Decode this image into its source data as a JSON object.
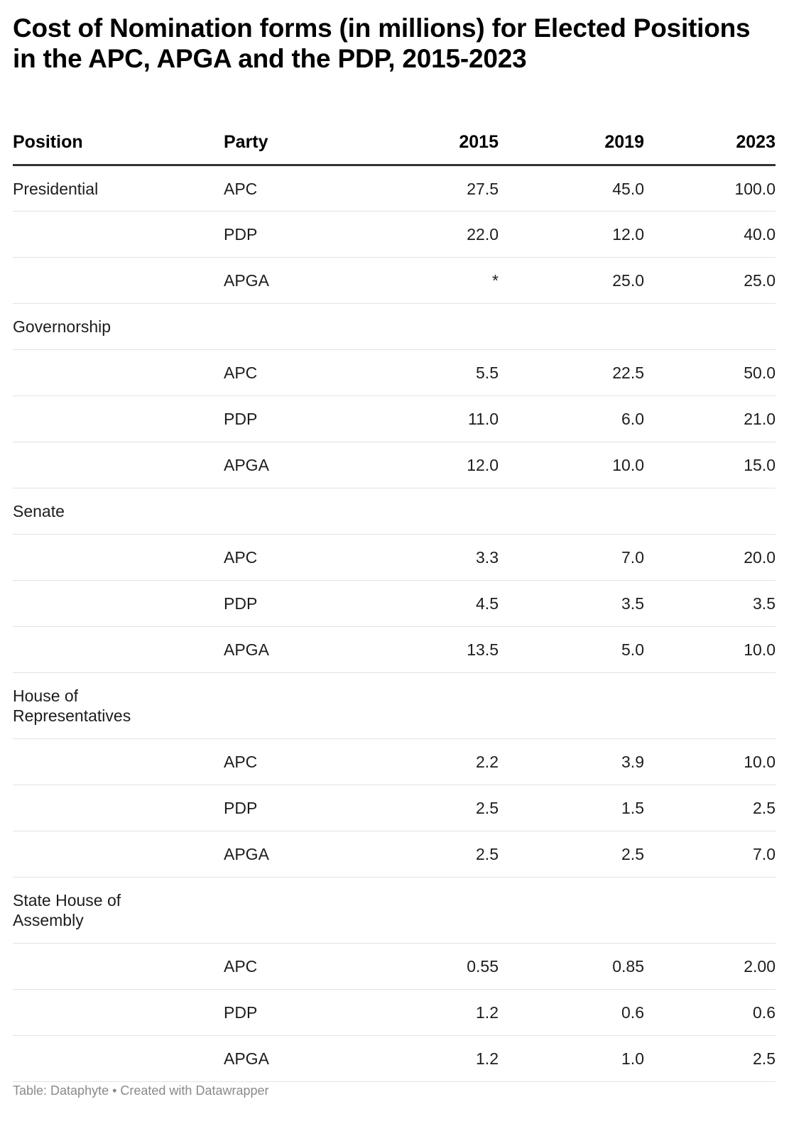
{
  "title": "Cost of Nomination forms (in millions) for Elected Positions in the APC, APGA and the PDP, 2015-2023",
  "footer": "Table: Dataphyte • Created with Datawrapper",
  "chart_data": {
    "type": "table",
    "title": "Cost of Nomination forms (in millions) for Elected Positions in the APC, APGA and the PDP, 2015-2023",
    "columns": [
      "Position",
      "Party",
      "2015",
      "2019",
      "2023"
    ],
    "rows": [
      [
        "Presidential",
        "APC",
        "27.5",
        "45.0",
        "100.0"
      ],
      [
        "",
        "PDP",
        "22.0",
        "12.0",
        "40.0"
      ],
      [
        "",
        "APGA",
        "*",
        "25.0",
        "25.0"
      ],
      [
        "Governorship",
        "",
        "",
        "",
        ""
      ],
      [
        "",
        "APC",
        "5.5",
        "22.5",
        "50.0"
      ],
      [
        "",
        "PDP",
        "11.0",
        "6.0",
        "21.0"
      ],
      [
        "",
        "APGA",
        "12.0",
        "10.0",
        "15.0"
      ],
      [
        "Senate",
        "",
        "",
        "",
        ""
      ],
      [
        "",
        "APC",
        "3.3",
        "7.0",
        "20.0"
      ],
      [
        "",
        "PDP",
        "4.5",
        "3.5",
        "3.5"
      ],
      [
        "",
        "APGA",
        "13.5",
        "5.0",
        "10.0"
      ],
      [
        "House of Representatives",
        "",
        "",
        "",
        ""
      ],
      [
        "",
        "APC",
        "2.2",
        "3.9",
        "10.0"
      ],
      [
        "",
        "PDP",
        "2.5",
        "1.5",
        "2.5"
      ],
      [
        "",
        "APGA",
        "2.5",
        "2.5",
        "7.0"
      ],
      [
        "State House of Assembly",
        "",
        "",
        "",
        ""
      ],
      [
        "",
        "APC",
        "0.55",
        "0.85",
        "2.00"
      ],
      [
        "",
        "PDP",
        "1.2",
        "0.6",
        "0.6"
      ],
      [
        "",
        "APGA",
        "1.2",
        "1.0",
        "2.5"
      ]
    ]
  }
}
